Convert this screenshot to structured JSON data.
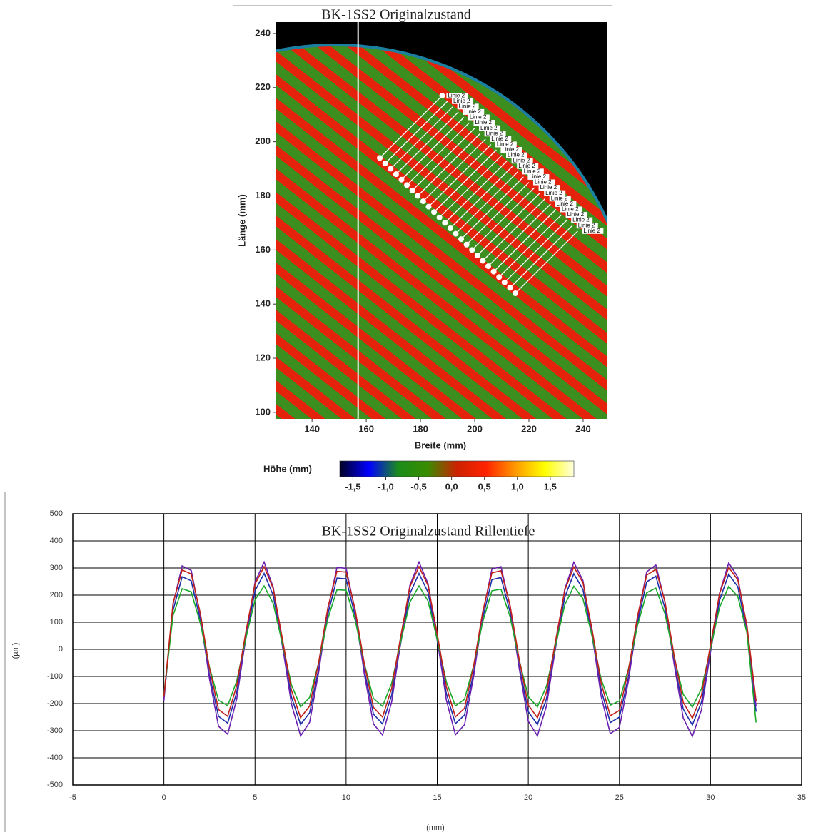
{
  "chart_data": [
    {
      "type": "surface",
      "title": "BK-1SS2  Originalzustand",
      "xlabel": "Breite  (mm)",
      "ylabel": "Länge  (mm)",
      "xlim": [
        126.8,
        248.7
      ],
      "ylim": [
        97.6,
        244.2
      ],
      "xticks": [
        140,
        160,
        180,
        200,
        220,
        240
      ],
      "yticks": [
        100,
        120,
        140,
        160,
        180,
        200,
        220,
        240
      ],
      "vline": 157,
      "line_label": "Linie 2",
      "lines": {
        "x0": [
          165,
          167,
          169,
          171,
          173,
          175,
          177,
          179,
          181,
          183,
          185,
          187,
          189,
          191,
          193,
          195,
          197,
          199,
          201,
          203,
          205,
          207,
          209,
          211,
          213,
          215
        ],
        "y0": [
          194,
          192,
          190,
          188,
          186,
          184,
          182,
          180,
          178,
          176,
          174,
          172,
          170,
          168,
          166,
          164,
          162,
          160,
          158,
          156,
          154,
          152,
          150,
          148,
          146,
          144
        ],
        "x1": [
          188,
          190,
          192,
          194,
          196,
          198,
          200,
          202,
          204,
          206,
          208,
          210,
          212,
          214,
          216,
          218,
          220,
          222,
          224,
          226,
          228,
          230,
          232,
          234,
          236,
          238
        ],
        "y1": [
          217,
          215,
          213,
          211,
          209,
          207,
          205,
          203,
          201,
          199,
          197,
          195,
          193,
          191,
          189,
          187,
          185,
          183,
          181,
          179,
          177,
          175,
          173,
          171,
          169,
          167
        ]
      },
      "colorbar": {
        "label": "Höhe  (mm)",
        "lim": [
          -1.7,
          1.86
        ],
        "ticks": [
          {
            "value": -1.5,
            "label": "-1,5"
          },
          {
            "value": -1.0,
            "label": "-1,0"
          },
          {
            "value": -0.5,
            "label": "-0,5"
          },
          {
            "value": 0,
            "label": "0,0"
          },
          {
            "value": 0.5,
            "label": "0,5"
          },
          {
            "value": 1.0,
            "label": "1,0"
          },
          {
            "value": 1.5,
            "label": "1,5"
          }
        ],
        "colors": [
          "#000022",
          "#0000ff",
          "#1a8c1a",
          "#3a8c00",
          "#cc2200",
          "#ff2200",
          "#ff9900",
          "#ffff00",
          "#ffffe0"
        ]
      }
    },
    {
      "type": "line",
      "title": "BK-1SS2  Originalzustand  Rillentiefe",
      "xlabel": "(mm)",
      "ylabel": "(µm)",
      "xlim": [
        -5,
        35
      ],
      "ylim": [
        -500,
        500
      ],
      "xticks": [
        -5,
        0,
        5,
        10,
        15,
        20,
        25,
        30,
        35
      ],
      "yticks": [
        -500,
        -400,
        -300,
        -200,
        -100,
        0,
        100,
        200,
        300,
        400,
        500
      ],
      "grid": true,
      "x": [
        0,
        0.5,
        1,
        1.5,
        2,
        2.5,
        3,
        3.5,
        4,
        4.5,
        5,
        5.5,
        6,
        6.5,
        7,
        7.5,
        8,
        8.5,
        9,
        9.5,
        10,
        10.5,
        11,
        11.5,
        12,
        12.5,
        13,
        13.5,
        14,
        14.5,
        15,
        15.5,
        16,
        16.5,
        17,
        17.5,
        18,
        18.5,
        19,
        19.5,
        20,
        20.5,
        21,
        21.5,
        22,
        22.5,
        23,
        23.5,
        24,
        24.5,
        25,
        25.5,
        26,
        26.5,
        27,
        27.5,
        28,
        28.5,
        29,
        29.5,
        30,
        30.5,
        31,
        31.5,
        32,
        32.5
      ],
      "series": [
        {
          "color": "#1c2fa8",
          "values": [
            -180,
            144,
            268,
            253,
            108,
            -94,
            -247,
            -272,
            -158,
            40,
            216,
            280,
            199,
            15,
            -176,
            -277,
            -234,
            -71,
            129,
            263,
            260,
            122,
            -79,
            -239,
            -275,
            -169,
            24,
            205,
            280,
            210,
            32,
            -163,
            -274,
            -242,
            -86,
            115,
            257,
            265,
            137,
            -62,
            -230,
            -277,
            -182,
            7,
            193,
            279,
            221,
            48,
            -150,
            -270,
            -250,
            -101,
            100,
            249,
            270,
            151,
            -46,
            -220,
            -279,
            -195,
            -9,
            181,
            277,
            231,
            64,
            -230
          ]
        },
        {
          "color": "#6a1fb0",
          "values": [
            -190,
            166,
            308,
            291,
            124,
            -108,
            -284,
            -313,
            -182,
            46,
            248,
            322,
            229,
            17,
            -202,
            -319,
            -269,
            -82,
            148,
            302,
            299,
            140,
            -91,
            -275,
            -316,
            -194,
            28,
            236,
            322,
            242,
            37,
            -187,
            -315,
            -278,
            -99,
            132,
            296,
            305,
            158,
            -71,
            -265,
            -319,
            -209,
            8,
            222,
            321,
            254,
            55,
            -173,
            -311,
            -288,
            -116,
            115,
            286,
            311,
            174,
            -53,
            -253,
            -321,
            -224,
            -10,
            208,
            319,
            266,
            74,
            -210
          ]
        },
        {
          "color": "#1aa82a",
          "values": [
            -170,
            125,
            224,
            212,
            96,
            -65,
            -188,
            -208,
            -116,
            42,
            183,
            234,
            169,
            22,
            -131,
            -212,
            -177,
            -47,
            113,
            220,
            218,
            108,
            -53,
            -181,
            -210,
            -125,
            29,
            174,
            234,
            178,
            36,
            -120,
            -209,
            -184,
            -59,
            102,
            216,
            222,
            120,
            -40,
            -174,
            -212,
            -136,
            16,
            164,
            233,
            187,
            48,
            -110,
            -206,
            -190,
            -71,
            90,
            209,
            226,
            131,
            -27,
            -166,
            -213,
            -146,
            3,
            155,
            232,
            195,
            61,
            -270
          ]
        },
        {
          "color": "#c0201a",
          "values": [
            -175,
            169,
            293,
            278,
            133,
            -69,
            -222,
            -247,
            -133,
            65,
            241,
            305,
            224,
            40,
            -151,
            -252,
            -209,
            -46,
            154,
            288,
            285,
            147,
            -54,
            -214,
            -250,
            -144,
            49,
            230,
            305,
            235,
            57,
            -138,
            -249,
            -217,
            -61,
            140,
            282,
            290,
            162,
            -37,
            -205,
            -252,
            -157,
            32,
            218,
            304,
            246,
            73,
            -125,
            -245,
            -225,
            -76,
            125,
            274,
            295,
            176,
            -21,
            -195,
            -254,
            -170,
            16,
            206,
            302,
            256,
            89,
            -190
          ]
        }
      ]
    }
  ]
}
